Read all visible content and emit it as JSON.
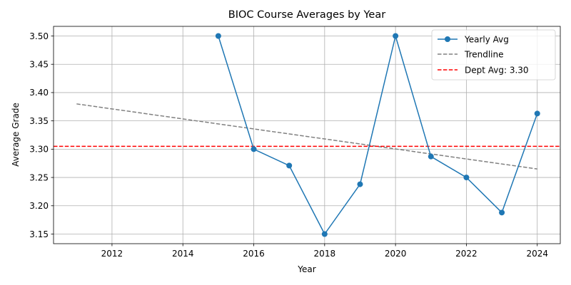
{
  "chart_data": {
    "type": "line",
    "title": "BIOC Course Averages by Year",
    "xlabel": "Year",
    "ylabel": "Average Grade",
    "xlim": [
      2010.35,
      2024.65
    ],
    "ylim": [
      3.133,
      3.517
    ],
    "x_ticks": [
      2012,
      2014,
      2016,
      2018,
      2020,
      2022,
      2024
    ],
    "x_tick_labels": [
      "2012",
      "2014",
      "2016",
      "2018",
      "2020",
      "2022",
      "2024"
    ],
    "y_ticks": [
      3.15,
      3.2,
      3.25,
      3.3,
      3.35,
      3.4,
      3.45,
      3.5
    ],
    "y_tick_labels": [
      "3.15",
      "3.20",
      "3.25",
      "3.30",
      "3.35",
      "3.40",
      "3.45",
      "3.50"
    ],
    "grid": true,
    "legend_position": "top-right",
    "series": [
      {
        "name": "Yearly Avg",
        "style": "solid-marker",
        "color": "#1f77b4",
        "x": [
          2015,
          2016,
          2017,
          2018,
          2019,
          2020,
          2021,
          2022,
          2023,
          2024
        ],
        "y": [
          3.5,
          3.3,
          3.271,
          3.15,
          3.238,
          3.5,
          3.287,
          3.25,
          3.188,
          3.363
        ]
      },
      {
        "name": "Trendline",
        "style": "dashed",
        "color": "#808080",
        "x": [
          2011,
          2024
        ],
        "y": [
          3.38,
          3.265
        ]
      },
      {
        "name": "Dept Avg: 3.30",
        "style": "dashed-hline",
        "color": "#ff0000",
        "y": 3.305
      }
    ]
  }
}
